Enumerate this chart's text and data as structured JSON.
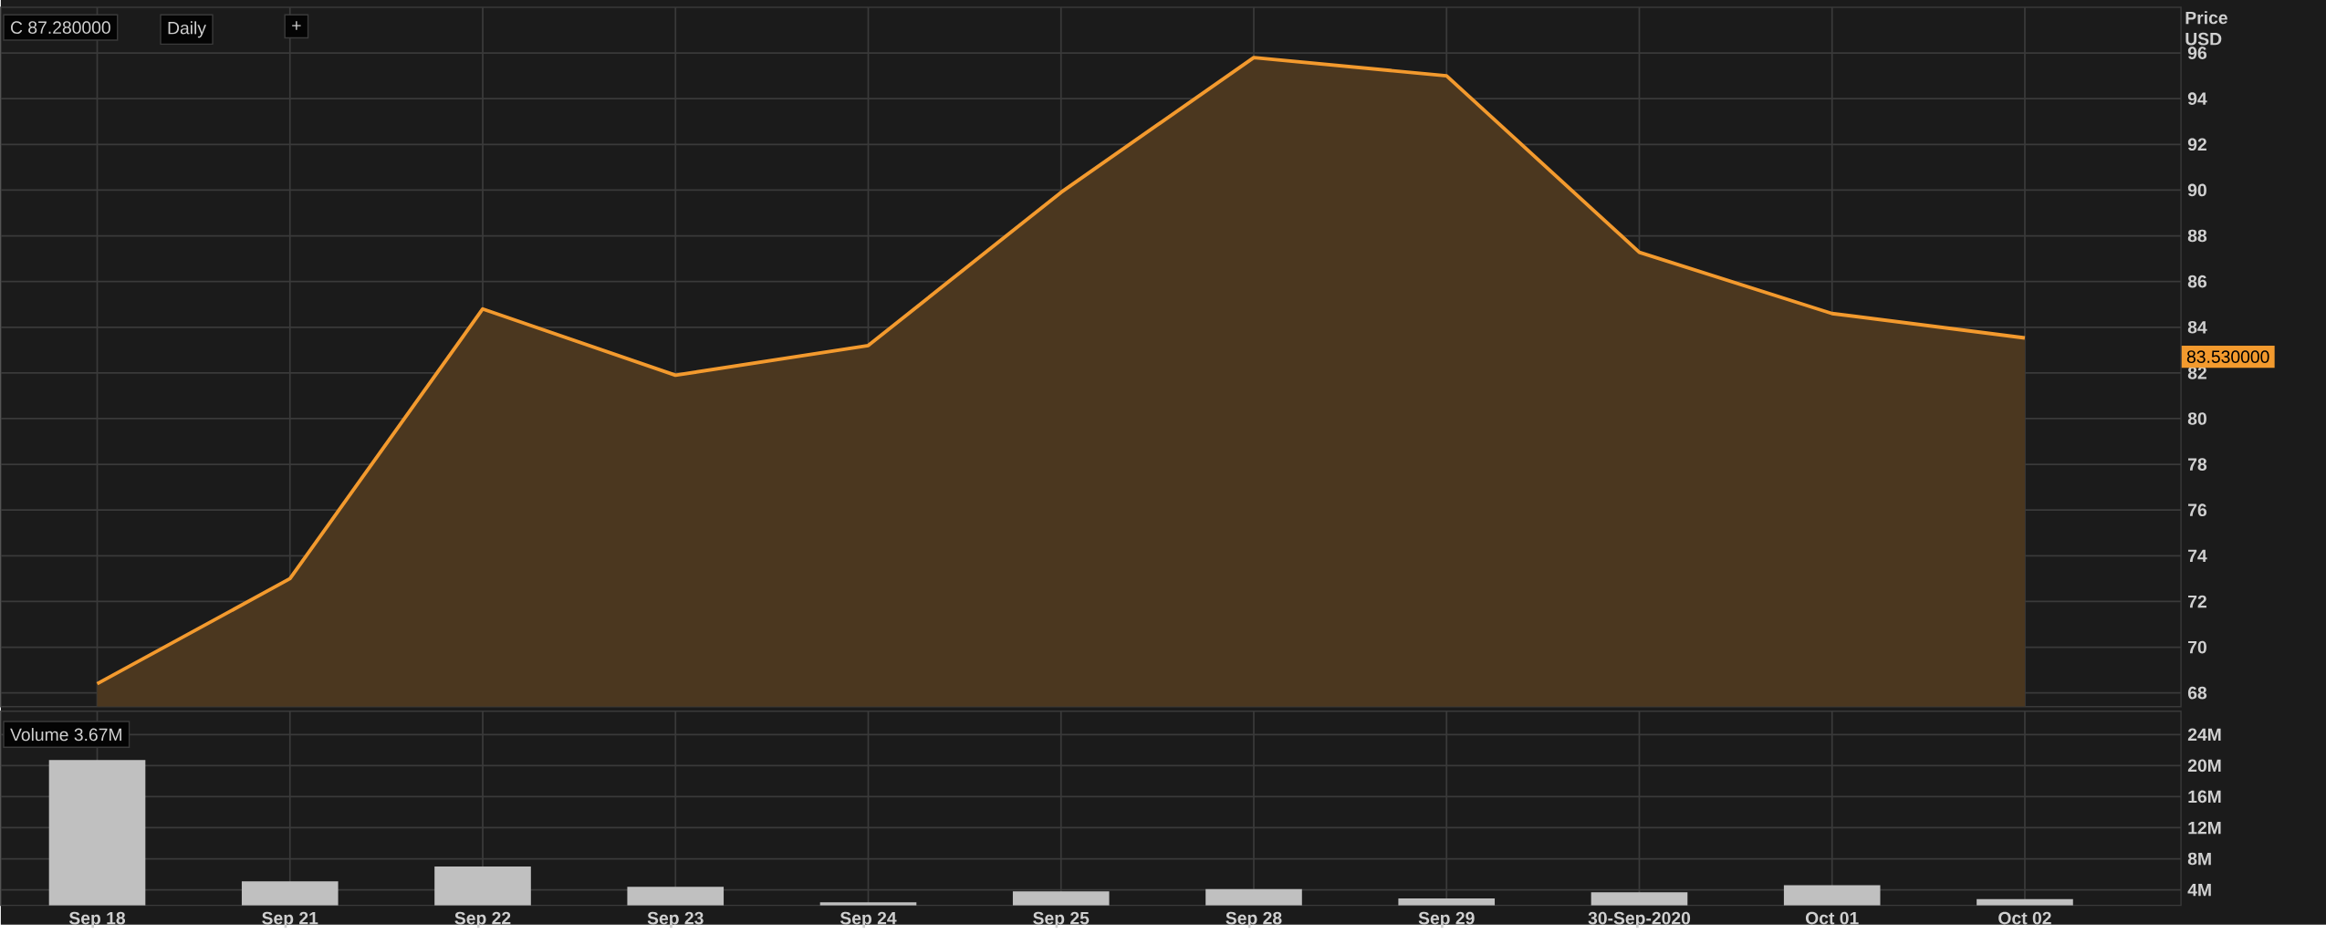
{
  "chart_data": [
    {
      "type": "area",
      "categories": [
        null,
        null,
        null,
        null,
        null,
        null,
        null,
        null,
        null,
        null,
        null
      ],
      "tick_labels": "y",
      "ylabel": "Price USD",
      "grid": true,
      "ylim": [
        67.4,
        98
      ],
      "yticks": [
        68,
        70,
        72,
        74,
        76,
        78,
        80,
        82,
        84,
        86,
        88,
        90,
        92,
        94,
        96
      ],
      "series": [
        {
          "color": "#f39a2e",
          "values": [
            68.4,
            73.0,
            84.8,
            81.9,
            83.2,
            89.9,
            95.8,
            95.0,
            87.28,
            84.6,
            83.53
          ]
        }
      ],
      "annotations": [
        "C 87.280000",
        "Daily",
        "+",
        "83.530000"
      ]
    },
    {
      "type": "bar",
      "categories": [
        "Sep 18",
        "Sep 21",
        "Sep 22",
        "Sep 23",
        "Sep 24",
        "Sep 25",
        "Sep 28",
        "Sep 29",
        "30-Sep-2020",
        "Oct 01",
        "Oct 02"
      ],
      "grid": true,
      "ylim": [
        2,
        27
      ],
      "yticks": [
        {
          "value": 4,
          "label": "4M"
        },
        {
          "value": 8,
          "label": "8M"
        },
        {
          "value": 12,
          "label": "12M"
        },
        {
          "value": 16,
          "label": "16M"
        },
        {
          "value": 20,
          "label": "20M"
        },
        {
          "value": 24,
          "label": "24M"
        }
      ],
      "color": "#c0c0c0",
      "values": [
        20.7,
        5.1,
        7.0,
        4.4,
        2.4,
        3.8,
        4.1,
        2.9,
        3.7,
        4.6,
        2.8
      ],
      "annotations": [
        "Volume 3.67M"
      ]
    }
  ]
}
